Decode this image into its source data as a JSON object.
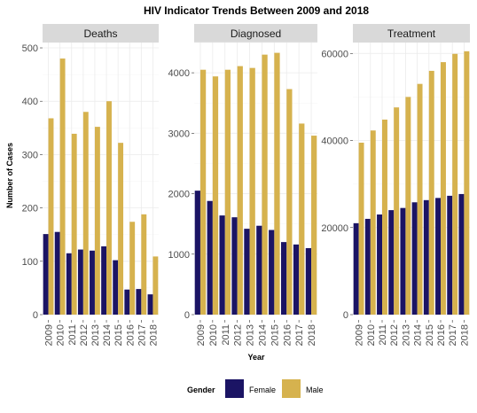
{
  "title": "HIV Indicator Trends Between 2009 and 2018",
  "xlabel": "Year",
  "ylabel": "Number of Cases",
  "legend": {
    "title": "Gender",
    "items": [
      {
        "label": "Female",
        "color": "#1b1464"
      },
      {
        "label": "Male",
        "color": "#d6b24e"
      }
    ]
  },
  "chart_data": [
    {
      "type": "bar",
      "title": "Deaths",
      "categories": [
        "2009",
        "2010",
        "2011",
        "2012",
        "2013",
        "2014",
        "2015",
        "2016",
        "2017",
        "2018"
      ],
      "series": [
        {
          "name": "Female",
          "values": [
            151,
            155,
            115,
            122,
            120,
            128,
            102,
            47,
            48,
            38
          ]
        },
        {
          "name": "Male",
          "values": [
            368,
            480,
            339,
            380,
            352,
            400,
            322,
            174,
            188,
            109
          ]
        }
      ],
      "ylim": [
        0,
        510
      ],
      "yticks": [
        0,
        100,
        200,
        300,
        400,
        500
      ]
    },
    {
      "type": "bar",
      "title": "Diagnosed",
      "categories": [
        "2009",
        "2010",
        "2011",
        "2012",
        "2013",
        "2014",
        "2015",
        "2016",
        "2017",
        "2018"
      ],
      "series": [
        {
          "name": "Female",
          "values": [
            2050,
            1880,
            1640,
            1610,
            1420,
            1470,
            1400,
            1200,
            1160,
            1100
          ]
        },
        {
          "name": "Male",
          "values": [
            4050,
            3940,
            4050,
            4110,
            4080,
            4300,
            4330,
            3730,
            3160,
            2960
          ]
        }
      ],
      "ylim": [
        0,
        4500
      ],
      "yticks": [
        0,
        1000,
        2000,
        3000,
        4000
      ]
    },
    {
      "type": "bar",
      "title": "Treatment",
      "categories": [
        "2009",
        "2010",
        "2011",
        "2012",
        "2013",
        "2014",
        "2015",
        "2016",
        "2017",
        "2018"
      ],
      "series": [
        {
          "name": "Female",
          "values": [
            21000,
            22000,
            23000,
            24000,
            24500,
            25800,
            26300,
            26800,
            27300,
            27700
          ]
        },
        {
          "name": "Male",
          "values": [
            39500,
            42300,
            44800,
            47600,
            50000,
            53000,
            56000,
            58000,
            59900,
            60500
          ]
        }
      ],
      "ylim": [
        0,
        62500
      ],
      "yticks": [
        0,
        20000,
        40000,
        60000
      ]
    }
  ]
}
